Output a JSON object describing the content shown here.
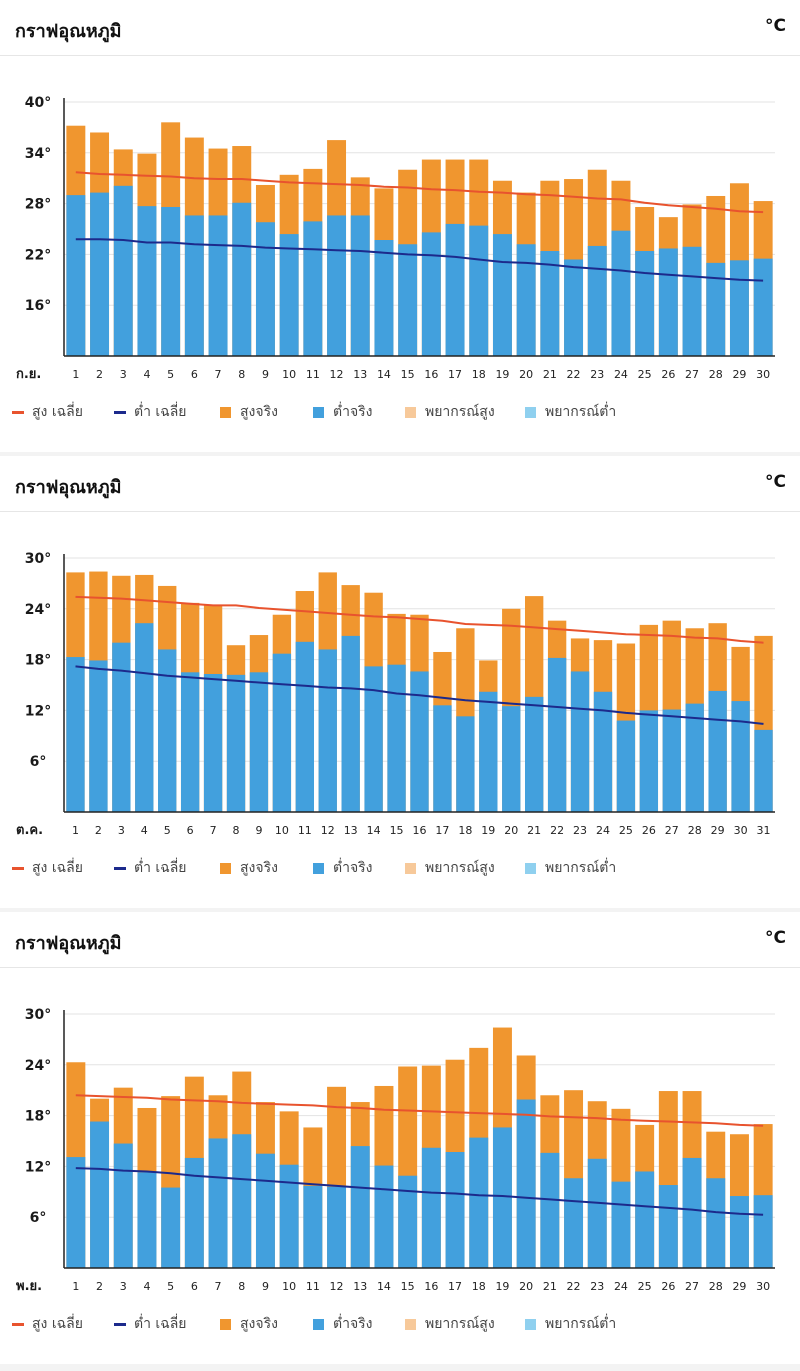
{
  "colors": {
    "high_avg": "#e8532e",
    "low_avg": "#1c2a8c",
    "high_actual": "#f0962f",
    "low_actual": "#42a0dd",
    "forecast_high": "#f7c99a",
    "forecast_low": "#8fd0ef"
  },
  "legend": {
    "high_avg": "สูง เฉลี่ย",
    "low_avg": "ต่ำ เฉลี่ย",
    "high_actual": "สูงจริง",
    "low_actual": "ต่ำจริง",
    "forecast_high": "พยากรณ์สูง",
    "forecast_low": "พยากรณ์ต่ำ"
  },
  "panels": [
    {
      "title": "กราฟอุณหภูมิ",
      "unit": "°C"
    },
    {
      "title": "กราฟอุณหภูมิ",
      "unit": "°C"
    },
    {
      "title": "กราฟอุณหภูมิ",
      "unit": "°C"
    }
  ],
  "chart_data": [
    {
      "type": "bar",
      "month_label": "ก.ย.",
      "ylim": [
        10,
        40
      ],
      "yticks": [
        16,
        22,
        28,
        34,
        40
      ],
      "ytick_labels": [
        "16°",
        "22°",
        "28°",
        "34°",
        "40°"
      ],
      "categories": [
        "1",
        "2",
        "3",
        "4",
        "5",
        "6",
        "7",
        "8",
        "9",
        "10",
        "11",
        "12",
        "13",
        "14",
        "15",
        "16",
        "17",
        "18",
        "19",
        "20",
        "21",
        "22",
        "23",
        "24",
        "25",
        "26",
        "27",
        "28",
        "29",
        "30"
      ],
      "series": [
        {
          "name": "สูงจริง",
          "values": [
            37.2,
            36.4,
            34.4,
            33.9,
            37.6,
            35.8,
            34.5,
            34.8,
            30.2,
            31.4,
            32.1,
            35.5,
            31.1,
            29.8,
            32,
            33.2,
            33.2,
            33.2,
            30.7,
            29.3,
            30.7,
            30.9,
            32,
            30.7,
            27.6,
            26.4,
            27.9,
            28.9,
            30.4,
            28.3
          ]
        },
        {
          "name": "ต่ำจริง",
          "values": [
            29,
            29.3,
            30.1,
            27.7,
            27.6,
            26.6,
            26.6,
            28.1,
            25.8,
            24.4,
            25.9,
            26.6,
            26.6,
            23.7,
            23.2,
            24.6,
            25.6,
            25.4,
            24.4,
            23.2,
            22.4,
            21.4,
            23,
            24.8,
            22.4,
            22.7,
            22.9,
            21,
            21.3,
            21.5
          ]
        },
        {
          "name": "สูง เฉลี่ย",
          "values": [
            31.7,
            31.5,
            31.4,
            31.3,
            31.2,
            31,
            30.9,
            30.9,
            30.7,
            30.5,
            30.4,
            30.3,
            30.2,
            30,
            29.9,
            29.7,
            29.6,
            29.4,
            29.3,
            29.1,
            29,
            28.8,
            28.6,
            28.5,
            28.1,
            27.8,
            27.6,
            27.4,
            27.1,
            27
          ]
        },
        {
          "name": "ต่ำ เฉลี่ย",
          "values": [
            23.8,
            23.8,
            23.7,
            23.4,
            23.4,
            23.2,
            23.1,
            23,
            22.8,
            22.7,
            22.6,
            22.5,
            22.4,
            22.2,
            22,
            21.9,
            21.7,
            21.4,
            21.1,
            21,
            20.8,
            20.5,
            20.3,
            20.1,
            19.8,
            19.6,
            19.4,
            19.2,
            19,
            18.9
          ]
        }
      ]
    },
    {
      "type": "bar",
      "month_label": "ต.ค.",
      "ylim": [
        0,
        30
      ],
      "yticks": [
        6,
        12,
        18,
        24,
        30
      ],
      "ytick_labels": [
        "6°",
        "12°",
        "18°",
        "24°",
        "30°"
      ],
      "categories": [
        "1",
        "2",
        "3",
        "4",
        "5",
        "6",
        "7",
        "8",
        "9",
        "10",
        "11",
        "12",
        "13",
        "14",
        "15",
        "16",
        "17",
        "18",
        "19",
        "20",
        "21",
        "22",
        "23",
        "24",
        "25",
        "26",
        "27",
        "28",
        "29",
        "30",
        "31"
      ],
      "series": [
        {
          "name": "สูงจริง",
          "values": [
            28.3,
            28.4,
            27.9,
            28,
            26.7,
            24.7,
            24.5,
            19.7,
            20.9,
            23.3,
            26.1,
            28.3,
            26.8,
            25.9,
            23.4,
            23.3,
            18.9,
            21.7,
            17.9,
            24,
            25.5,
            22.6,
            20.5,
            20.3,
            19.9,
            22.1,
            22.6,
            21.7,
            22.3,
            19.5,
            20.8
          ]
        },
        {
          "name": "ต่ำจริง",
          "values": [
            18.3,
            17.9,
            20,
            22.3,
            19.2,
            16.5,
            16.3,
            16.2,
            16.5,
            18.7,
            20.1,
            19.2,
            20.8,
            17.2,
            17.4,
            16.6,
            12.6,
            11.3,
            14.2,
            12.5,
            13.6,
            18.2,
            16.6,
            14.2,
            10.8,
            12,
            12.1,
            12.8,
            14.3,
            13.1,
            9.7
          ]
        },
        {
          "name": "สูง เฉลี่ย",
          "values": [
            25.4,
            25.3,
            25.2,
            25,
            24.8,
            24.6,
            24.4,
            24.4,
            24.1,
            23.9,
            23.7,
            23.5,
            23.3,
            23.1,
            23,
            22.8,
            22.6,
            22.2,
            22.1,
            22,
            21.8,
            21.6,
            21.4,
            21.2,
            21,
            20.9,
            20.8,
            20.6,
            20.5,
            20.2,
            20
          ]
        },
        {
          "name": "ต่ำ เฉลี่ย",
          "values": [
            17.2,
            16.9,
            16.7,
            16.4,
            16.1,
            15.9,
            15.7,
            15.5,
            15.3,
            15.1,
            14.9,
            14.7,
            14.6,
            14.4,
            14,
            13.8,
            13.5,
            13.2,
            13,
            12.8,
            12.6,
            12.4,
            12.2,
            12,
            11.7,
            11.5,
            11.3,
            11.1,
            10.9,
            10.7,
            10.4
          ]
        }
      ]
    },
    {
      "type": "bar",
      "month_label": "พ.ย.",
      "ylim": [
        0,
        30
      ],
      "yticks": [
        6,
        12,
        18,
        24,
        30
      ],
      "ytick_labels": [
        "6°",
        "12°",
        "18°",
        "24°",
        "30°"
      ],
      "categories": [
        "1",
        "2",
        "3",
        "4",
        "5",
        "6",
        "7",
        "8",
        "9",
        "10",
        "11",
        "12",
        "13",
        "14",
        "15",
        "16",
        "17",
        "18",
        "19",
        "20",
        "21",
        "22",
        "23",
        "24",
        "25",
        "26",
        "27",
        "28",
        "29",
        "30"
      ],
      "series": [
        {
          "name": "สูงจริง",
          "values": [
            24.3,
            20,
            21.3,
            18.9,
            20.3,
            22.6,
            20.4,
            23.2,
            19.6,
            18.5,
            16.6,
            21.4,
            19.6,
            21.5,
            23.8,
            23.9,
            24.6,
            26,
            28.4,
            25.1,
            20.4,
            21,
            19.7,
            18.8,
            16.9,
            20.9,
            20.9,
            16.1,
            15.8,
            17
          ]
        },
        {
          "name": "ต่ำจริง",
          "values": [
            13.1,
            17.3,
            14.7,
            11.3,
            9.5,
            13,
            15.3,
            15.8,
            13.5,
            12.2,
            9.7,
            9.6,
            14.4,
            12.1,
            10.9,
            14.2,
            13.7,
            15.4,
            16.6,
            19.9,
            13.6,
            10.6,
            12.9,
            10.2,
            11.4,
            9.8,
            13,
            10.6,
            8.5,
            8.6
          ]
        },
        {
          "name": "สูง เฉลี่ย",
          "values": [
            20.4,
            20.3,
            20.2,
            20.1,
            19.9,
            19.8,
            19.7,
            19.5,
            19.4,
            19.3,
            19.2,
            19,
            18.9,
            18.7,
            18.6,
            18.5,
            18.4,
            18.3,
            18.2,
            18.1,
            17.9,
            17.8,
            17.7,
            17.5,
            17.4,
            17.3,
            17.2,
            17.1,
            16.9,
            16.8
          ]
        },
        {
          "name": "ต่ำ เฉลี่ย",
          "values": [
            11.8,
            11.7,
            11.5,
            11.4,
            11.2,
            10.9,
            10.7,
            10.5,
            10.3,
            10.1,
            9.9,
            9.7,
            9.5,
            9.3,
            9.1,
            8.9,
            8.8,
            8.6,
            8.5,
            8.3,
            8.1,
            7.9,
            7.7,
            7.5,
            7.3,
            7.1,
            6.9,
            6.6,
            6.4,
            6.3
          ]
        }
      ]
    }
  ]
}
